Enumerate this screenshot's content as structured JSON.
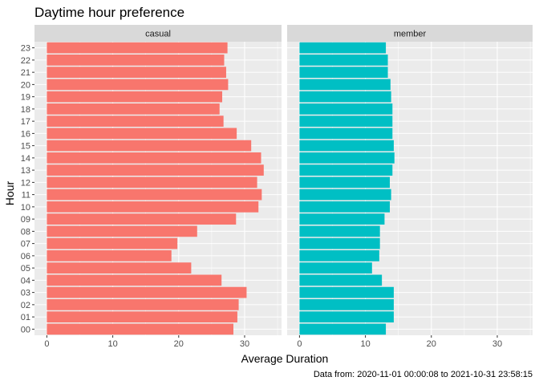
{
  "chart_data": {
    "type": "bar",
    "orientation": "horizontal",
    "title": "Daytime hour preference",
    "xlabel": "Average Duration",
    "ylabel": "Hour",
    "caption": "Data from: 2020-11-01 00:00:08 to 2021-10-31 23:58:15",
    "xlim": [
      0,
      35
    ],
    "xticks": [
      0,
      10,
      20,
      30
    ],
    "grid": true,
    "legend": "none",
    "categories": [
      "00",
      "01",
      "02",
      "03",
      "04",
      "05",
      "06",
      "07",
      "08",
      "09",
      "10",
      "11",
      "12",
      "13",
      "14",
      "15",
      "16",
      "17",
      "18",
      "19",
      "20",
      "21",
      "22",
      "23"
    ],
    "series": [
      {
        "name": "casual",
        "color": "#F8766D",
        "values": [
          28.3,
          28.9,
          29.1,
          30.3,
          26.5,
          21.9,
          18.9,
          19.8,
          22.8,
          28.7,
          32.1,
          32.6,
          31.9,
          32.9,
          32.5,
          31.0,
          28.8,
          26.8,
          26.2,
          26.6,
          27.5,
          27.2,
          26.9,
          27.4
        ]
      },
      {
        "name": "member",
        "color": "#00BFC4",
        "values": [
          13.1,
          14.3,
          14.3,
          14.3,
          12.5,
          11.0,
          12.1,
          12.2,
          12.2,
          12.9,
          13.7,
          13.9,
          13.7,
          14.1,
          14.4,
          14.3,
          14.1,
          14.1,
          14.1,
          13.9,
          13.8,
          13.4,
          13.4,
          13.1
        ]
      }
    ]
  }
}
